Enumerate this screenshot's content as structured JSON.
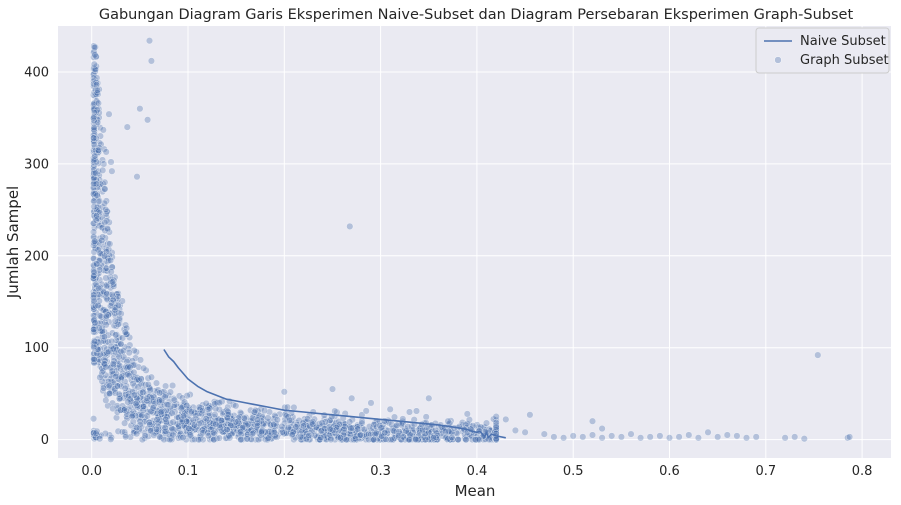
{
  "chart_data": {
    "type": "line+scatter",
    "title": "Gabungan Diagram Garis Eksperimen Naive-Subset dan Diagram Persebaran Eksperimen Graph-Subset",
    "xlabel": "Mean",
    "ylabel": "Jumlah Sampel",
    "xlim": [
      -0.035,
      0.83
    ],
    "ylim": [
      -20,
      450
    ],
    "xticks": [
      0.0,
      0.1,
      0.2,
      0.3,
      0.4,
      0.5,
      0.6,
      0.7,
      0.8
    ],
    "xtick_labels": [
      "0.0",
      "0.1",
      "0.2",
      "0.3",
      "0.4",
      "0.5",
      "0.6",
      "0.7",
      "0.8"
    ],
    "yticks": [
      0,
      100,
      200,
      300,
      400
    ],
    "ytick_labels": [
      "0",
      "100",
      "200",
      "300",
      "400"
    ],
    "grid": true,
    "legend_position": "top-right",
    "colors": {
      "background": "#eaeaf2",
      "grid": "#ffffff",
      "series": "#4c72b0"
    },
    "series": [
      {
        "name": "Naive Subset",
        "kind": "line",
        "x": [
          0.075,
          0.08,
          0.085,
          0.09,
          0.095,
          0.1,
          0.11,
          0.12,
          0.13,
          0.14,
          0.15,
          0.16,
          0.17,
          0.18,
          0.19,
          0.2,
          0.22,
          0.24,
          0.26,
          0.28,
          0.3,
          0.32,
          0.34,
          0.36,
          0.38,
          0.39,
          0.395,
          0.4,
          0.403,
          0.405,
          0.408,
          0.41,
          0.412,
          0.415,
          0.42,
          0.43
        ],
        "y": [
          98,
          90,
          85,
          78,
          72,
          66,
          58,
          52,
          48,
          44,
          42,
          40,
          38,
          36,
          34,
          32,
          30,
          28,
          26,
          24,
          22,
          20,
          18,
          16,
          13,
          11,
          9,
          8,
          9,
          7,
          3,
          8,
          2,
          6,
          4,
          2
        ]
      },
      {
        "name": "Graph Subset",
        "kind": "scatter",
        "seed": 12345,
        "dense_cluster_count": 2000,
        "points": [
          [
            0.06,
            434
          ],
          [
            0.062,
            412
          ],
          [
            0.005,
            386
          ],
          [
            0.006,
            380
          ],
          [
            0.007,
            366
          ],
          [
            0.002,
            350
          ],
          [
            0.018,
            354
          ],
          [
            0.05,
            360
          ],
          [
            0.058,
            348
          ],
          [
            0.037,
            340
          ],
          [
            0.012,
            337
          ],
          [
            0.013,
            316
          ],
          [
            0.015,
            313
          ],
          [
            0.02,
            302
          ],
          [
            0.021,
            292
          ],
          [
            0.047,
            286
          ],
          [
            0.004,
            290
          ],
          [
            0.268,
            232
          ],
          [
            0.754,
            92
          ],
          [
            0.48,
            3
          ],
          [
            0.49,
            2
          ],
          [
            0.5,
            4
          ],
          [
            0.51,
            3
          ],
          [
            0.52,
            5
          ],
          [
            0.53,
            2
          ],
          [
            0.54,
            4
          ],
          [
            0.55,
            3
          ],
          [
            0.56,
            6
          ],
          [
            0.57,
            2
          ],
          [
            0.58,
            3
          ],
          [
            0.59,
            4
          ],
          [
            0.6,
            2
          ],
          [
            0.61,
            3
          ],
          [
            0.62,
            5
          ],
          [
            0.63,
            2
          ],
          [
            0.64,
            8
          ],
          [
            0.65,
            3
          ],
          [
            0.66,
            5
          ],
          [
            0.67,
            4
          ],
          [
            0.68,
            2
          ],
          [
            0.69,
            3
          ],
          [
            0.72,
            2
          ],
          [
            0.73,
            3
          ],
          [
            0.74,
            1
          ],
          [
            0.785,
            2
          ],
          [
            0.787,
            3
          ],
          [
            0.455,
            27
          ],
          [
            0.43,
            22
          ],
          [
            0.42,
            25
          ],
          [
            0.41,
            18
          ],
          [
            0.39,
            28
          ],
          [
            0.37,
            20
          ],
          [
            0.35,
            45
          ],
          [
            0.33,
            30
          ],
          [
            0.31,
            33
          ],
          [
            0.29,
            40
          ],
          [
            0.27,
            45
          ],
          [
            0.25,
            55
          ],
          [
            0.23,
            30
          ],
          [
            0.21,
            35
          ],
          [
            0.2,
            52
          ],
          [
            0.52,
            20
          ],
          [
            0.53,
            12
          ],
          [
            0.45,
            8
          ],
          [
            0.47,
            6
          ],
          [
            0.44,
            10
          ]
        ]
      }
    ]
  }
}
